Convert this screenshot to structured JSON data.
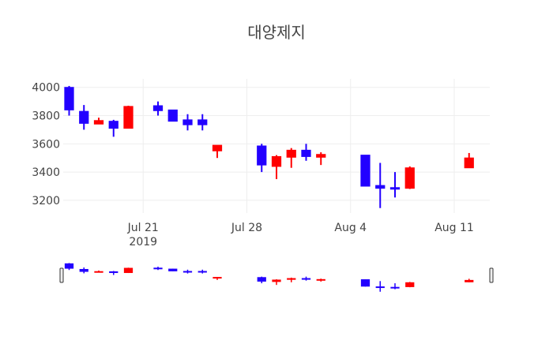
{
  "chart_data": {
    "type": "candlestick",
    "title": "대양제지",
    "xlabel": "",
    "ylabel": "",
    "ylim": [
      3110,
      4060
    ],
    "yticks": [
      3200,
      3400,
      3600,
      3800,
      4000
    ],
    "xrange": [
      "2019-07-16",
      "2019-08-13"
    ],
    "xticks": [
      {
        "date": "2019-07-21",
        "label": "Jul 21",
        "sublabel": "2019"
      },
      {
        "date": "2019-07-28",
        "label": "Jul 28",
        "sublabel": ""
      },
      {
        "date": "2019-08-04",
        "label": "Aug 4",
        "sublabel": ""
      },
      {
        "date": "2019-08-11",
        "label": "Aug 11",
        "sublabel": ""
      }
    ],
    "colors": {
      "increasing": "#ff0000",
      "decreasing": "#2200ff",
      "grid": "#eeeeee"
    },
    "grid": true,
    "rangeslider": true,
    "legend": "none",
    "candles": [
      {
        "date": "2019-07-16",
        "open": 4000,
        "high": 4010,
        "low": 3800,
        "close": 3840
      },
      {
        "date": "2019-07-17",
        "open": 3830,
        "high": 3875,
        "low": 3700,
        "close": 3745
      },
      {
        "date": "2019-07-18",
        "open": 3740,
        "high": 3785,
        "low": 3740,
        "close": 3765
      },
      {
        "date": "2019-07-19",
        "open": 3760,
        "high": 3770,
        "low": 3650,
        "close": 3710
      },
      {
        "date": "2019-07-20",
        "open": 3710,
        "high": 3870,
        "low": 3710,
        "close": 3865
      },
      {
        "date": "2019-07-22",
        "open": 3870,
        "high": 3900,
        "low": 3800,
        "close": 3835
      },
      {
        "date": "2019-07-23",
        "open": 3840,
        "high": 3840,
        "low": 3760,
        "close": 3760
      },
      {
        "date": "2019-07-24",
        "open": 3770,
        "high": 3810,
        "low": 3695,
        "close": 3735
      },
      {
        "date": "2019-07-25",
        "open": 3770,
        "high": 3810,
        "low": 3695,
        "close": 3735
      },
      {
        "date": "2019-07-26",
        "open": 3550,
        "high": 3590,
        "low": 3500,
        "close": 3590
      },
      {
        "date": "2019-07-29",
        "open": 3585,
        "high": 3600,
        "low": 3400,
        "close": 3450
      },
      {
        "date": "2019-07-30",
        "open": 3440,
        "high": 3520,
        "low": 3350,
        "close": 3510
      },
      {
        "date": "2019-07-31",
        "open": 3505,
        "high": 3570,
        "low": 3430,
        "close": 3555
      },
      {
        "date": "2019-08-01",
        "open": 3555,
        "high": 3600,
        "low": 3480,
        "close": 3510
      },
      {
        "date": "2019-08-02",
        "open": 3505,
        "high": 3540,
        "low": 3450,
        "close": 3525
      },
      {
        "date": "2019-08-05",
        "open": 3520,
        "high": 3520,
        "low": 3300,
        "close": 3300
      },
      {
        "date": "2019-08-06",
        "open": 3305,
        "high": 3465,
        "low": 3145,
        "close": 3285
      },
      {
        "date": "2019-08-07",
        "open": 3290,
        "high": 3400,
        "low": 3220,
        "close": 3280
      },
      {
        "date": "2019-08-08",
        "open": 3285,
        "high": 3440,
        "low": 3280,
        "close": 3430
      },
      {
        "date": "2019-08-12",
        "open": 3430,
        "high": 3535,
        "low": 3430,
        "close": 3500
      }
    ]
  }
}
